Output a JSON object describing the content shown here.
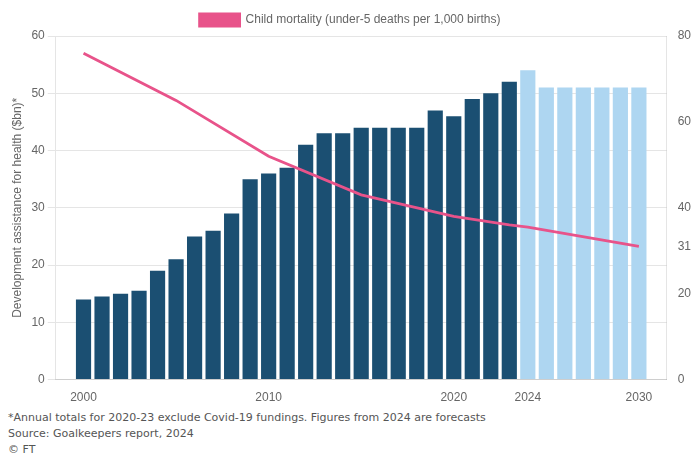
{
  "chart_data": {
    "type": "bar",
    "y_label": "Development assistance for health ($bn)*",
    "legend": "top",
    "grid": true,
    "x": [
      2000,
      2001,
      2002,
      2003,
      2004,
      2005,
      2006,
      2007,
      2008,
      2009,
      2010,
      2011,
      2012,
      2013,
      2014,
      2015,
      2016,
      2017,
      2018,
      2019,
      2020,
      2021,
      2022,
      2023,
      2024,
      2025,
      2026,
      2027,
      2028,
      2029,
      2030
    ],
    "xlim": [
      1998.5,
      2031.5
    ],
    "xticks": [
      2000,
      2010,
      2020,
      2024,
      2030
    ],
    "ylim": [
      0,
      60
    ],
    "yticks": [
      0,
      10,
      20,
      30,
      40,
      50,
      60
    ],
    "y2lim": [
      0,
      80
    ],
    "y2ticks": [
      0,
      20,
      31,
      40,
      60,
      80
    ],
    "series": [
      {
        "type": "bar",
        "values": [
          14,
          14.5,
          15,
          15.5,
          19,
          21,
          25,
          26,
          29,
          35,
          36,
          37,
          41,
          43,
          43,
          44,
          44,
          44,
          44,
          47,
          46,
          49,
          50,
          52,
          54,
          51,
          51,
          51,
          51,
          51,
          51
        ],
        "colors": [
          "#1B4F72",
          "#1B4F72",
          "#1B4F72",
          "#1B4F72",
          "#1B4F72",
          "#1B4F72",
          "#1B4F72",
          "#1B4F72",
          "#1B4F72",
          "#1B4F72",
          "#1B4F72",
          "#1B4F72",
          "#1B4F72",
          "#1B4F72",
          "#1B4F72",
          "#1B4F72",
          "#1B4F72",
          "#1B4F72",
          "#1B4F72",
          "#1B4F72",
          "#1B4F72",
          "#1B4F72",
          "#1B4F72",
          "#1B4F72",
          "#AED6F1",
          "#AED6F1",
          "#AED6F1",
          "#AED6F1",
          "#AED6F1",
          "#AED6F1",
          "#AED6F1"
        ]
      },
      {
        "type": "line",
        "name": "Child mortality (under-5 deaths per 1,000 births)",
        "color": "#E8538A",
        "axis": "y2",
        "x": [
          2000,
          2005,
          2010,
          2015,
          2020,
          2023,
          2024,
          2030
        ],
        "values": [
          76,
          65,
          52,
          43,
          38,
          36,
          35.5,
          31
        ]
      }
    ],
    "annotations": [
      "*Annual totals for 2020-23 exclude Covid-19 fundings. Figures from 2024 are forecasts",
      "Source: Goalkeepers report, 2024",
      "© FT"
    ]
  }
}
